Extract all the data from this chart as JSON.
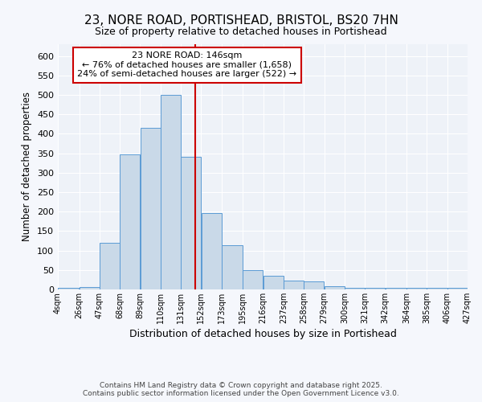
{
  "title": "23, NORE ROAD, PORTISHEAD, BRISTOL, BS20 7HN",
  "subtitle": "Size of property relative to detached houses in Portishead",
  "xlabel": "Distribution of detached houses by size in Portishead",
  "ylabel": "Number of detached properties",
  "bar_color": "#c9d9e8",
  "bar_edge_color": "#5b9bd5",
  "background_color": "#eef2f8",
  "grid_color": "#ffffff",
  "fig_background": "#f5f7fc",
  "vline_x": 146,
  "vline_color": "#cc0000",
  "annotation_text": "23 NORE ROAD: 146sqm\n← 76% of detached houses are smaller (1,658)\n24% of semi-detached houses are larger (522) →",
  "annotation_box_color": "#ffffff",
  "annotation_box_edge_color": "#cc0000",
  "bin_edges": [
    4,
    26,
    47,
    68,
    89,
    110,
    131,
    152,
    173,
    195,
    216,
    237,
    258,
    279,
    300,
    321,
    342,
    364,
    385,
    406,
    427
  ],
  "bin_labels": [
    "4sqm",
    "26sqm",
    "47sqm",
    "68sqm",
    "89sqm",
    "110sqm",
    "131sqm",
    "152sqm",
    "173sqm",
    "195sqm",
    "216sqm",
    "237sqm",
    "258sqm",
    "279sqm",
    "300sqm",
    "321sqm",
    "342sqm",
    "364sqm",
    "385sqm",
    "406sqm",
    "427sqm"
  ],
  "bar_heights": [
    5,
    7,
    120,
    348,
    415,
    500,
    340,
    197,
    113,
    50,
    36,
    23,
    20,
    9,
    4,
    4,
    4,
    4,
    4,
    5
  ],
  "ylim": [
    0,
    630
  ],
  "yticks": [
    0,
    50,
    100,
    150,
    200,
    250,
    300,
    350,
    400,
    450,
    500,
    550,
    600
  ],
  "footer_text": "Contains HM Land Registry data © Crown copyright and database right 2025.\nContains public sector information licensed under the Open Government Licence v3.0."
}
